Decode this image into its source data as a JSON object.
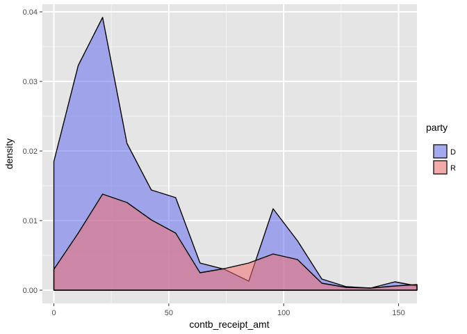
{
  "chart_data": {
    "type": "area",
    "xlabel": "contb_receipt_amt",
    "ylabel": "density",
    "xlim": [
      -5,
      158
    ],
    "ylim": [
      -0.0019,
      0.0411
    ],
    "x_ticks": [
      0,
      50,
      100,
      150
    ],
    "x_tick_labels": [
      "0",
      "50",
      "100",
      "150"
    ],
    "y_ticks": [
      0,
      0.01,
      0.02,
      0.03,
      0.04
    ],
    "y_tick_labels": [
      "0.00",
      "0.01",
      "0.02",
      "0.03",
      "0.04"
    ],
    "grid": true,
    "legend": {
      "title": "party",
      "position": "right"
    },
    "series": [
      {
        "name": "D",
        "color": "#6670ee",
        "x": [
          0,
          10.6,
          21.2,
          31.8,
          42.4,
          53.0,
          63.6,
          74.2,
          84.8,
          95.4,
          106.0,
          116.6,
          127.2,
          137.8,
          148.4,
          158
        ],
        "values": [
          0.0185,
          0.0323,
          0.0392,
          0.0211,
          0.0144,
          0.0133,
          0.0039,
          0.003,
          0.0013,
          0.0117,
          0.0071,
          0.0016,
          0.0005,
          0.0003,
          0.0012,
          0.0006
        ]
      },
      {
        "name": "R",
        "color": "#f06e6e",
        "x": [
          0,
          10.6,
          21.2,
          31.8,
          42.4,
          53.0,
          63.6,
          74.2,
          84.8,
          95.4,
          106.0,
          116.6,
          127.2,
          137.8,
          148.4,
          158
        ],
        "values": [
          0.003,
          0.0082,
          0.0138,
          0.0126,
          0.0101,
          0.0082,
          0.0025,
          0.0031,
          0.0039,
          0.0052,
          0.0044,
          0.001,
          0.0004,
          0.0003,
          0.0006,
          0.0008
        ]
      }
    ]
  }
}
